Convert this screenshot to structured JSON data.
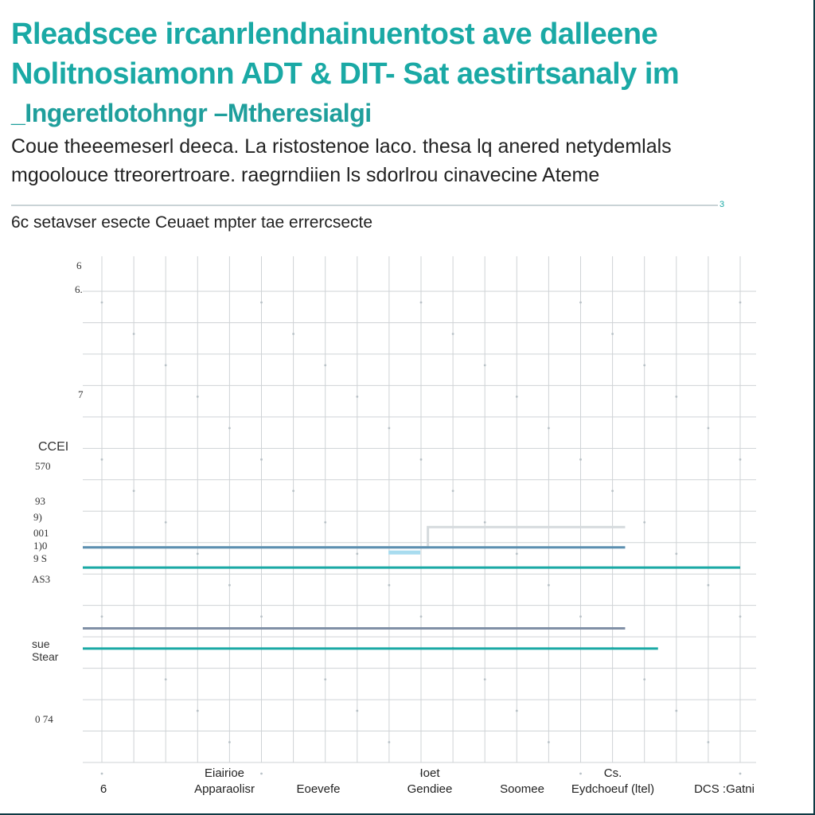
{
  "header": {
    "title_lines": [
      "Rleadscee ircanrlendnainuentost ave dalleene",
      "Nolitnosiamonn  ADT  & DIT-  Sat aestirtsanaly  im",
      "_Ingeretlotohngr  –Mtheresialgi"
    ],
    "description_lines": [
      "Coue theeemeserl deeca. La ristostenoe laco. thesa  lq  anered  netydemlals",
      "mgoolouce  ttreorertroare. raegrndiien  ls sdorlrou cinavecine  Ateme"
    ],
    "divider_mark": "3",
    "subtitle_prefix": "6c",
    "subtitle": "setavser esecte Ceuaet  mpter tae errercsecte"
  },
  "colors": {
    "teal": "#1aa9a5",
    "steel_blue": "#5b8fb0",
    "slate": "#8090a6",
    "light_gray": "#d5dadd",
    "highlight": "#a8dcef",
    "grid": "#cfd3d6"
  },
  "chart_data": {
    "type": "line",
    "title": "",
    "grid": true,
    "y_tick_labels": [
      "6",
      "6.",
      "7",
      "CCEI",
      "570",
      "93",
      "9)",
      "001",
      "1)0",
      "9 S",
      "AS3",
      "sue",
      "Stear",
      "0 74"
    ],
    "x_tick_labels": [
      [
        "6"
      ],
      [
        "Eiairioe",
        "Apparaolisr"
      ],
      [
        "Eoevefe"
      ],
      [
        "Ioet",
        "Gendiee"
      ],
      [
        "Soomee"
      ],
      [
        "Cs.",
        "Eydchoeuf (ltel)"
      ],
      [
        "DCS :Gatni"
      ]
    ],
    "series": [
      {
        "values": [
          {
            "x": 0.0,
            "y": 0.575
          },
          {
            "x": 0.525,
            "y": 0.575
          },
          {
            "x": 0.525,
            "y": 0.535
          },
          {
            "x": 0.825,
            "y": 0.535
          }
        ]
      },
      {
        "values": [
          {
            "x": 0.0,
            "y": 0.575
          },
          {
            "x": 0.825,
            "y": 0.575
          }
        ]
      },
      {
        "values": [
          {
            "x": 0.0,
            "y": 0.615
          },
          {
            "x": 1.0,
            "y": 0.615
          }
        ]
      },
      {
        "values": [
          {
            "x": 0.0,
            "y": 0.735
          },
          {
            "x": 0.825,
            "y": 0.735
          }
        ]
      },
      {
        "values": [
          {
            "x": 0.0,
            "y": 0.775
          },
          {
            "x": 0.875,
            "y": 0.775
          }
        ]
      }
    ]
  }
}
